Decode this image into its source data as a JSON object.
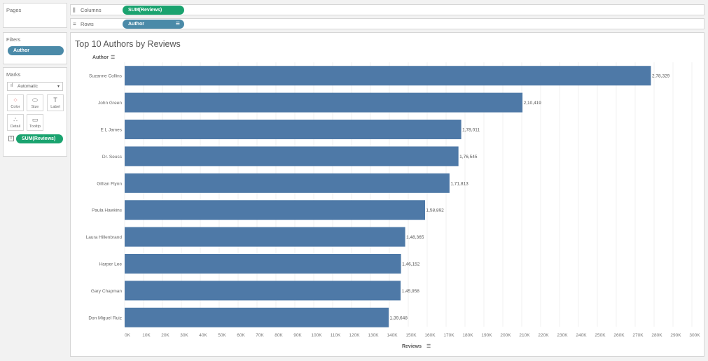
{
  "pages": {
    "title": "Pages"
  },
  "filters": {
    "title": "Filters",
    "pill": "Author"
  },
  "marks": {
    "title": "Marks",
    "dropdown": "Automatic",
    "buttons": [
      {
        "name": "color",
        "label": "Color",
        "glyph": "⁘"
      },
      {
        "name": "size",
        "label": "Size",
        "glyph": "⬭"
      },
      {
        "name": "label",
        "label": "Label",
        "glyph": "T"
      },
      {
        "name": "detail",
        "label": "Detail",
        "glyph": "∴"
      },
      {
        "name": "tooltip",
        "label": "Tooltip",
        "glyph": "▭"
      }
    ],
    "measure_pill": "SUM(Reviews)"
  },
  "shelves": {
    "columns": {
      "label": "Columns",
      "pill": "SUM(Reviews)"
    },
    "rows": {
      "label": "Rows",
      "pill": "Author"
    }
  },
  "colors": {
    "bar": "#4e79a7",
    "green_pill": "#1aa36f",
    "blue_pill": "#4b8aa8"
  },
  "chart_data": {
    "type": "bar",
    "orientation": "horizontal",
    "title": "Top 10 Authors by Reviews",
    "xlabel": "Reviews",
    "ylabel": "Author",
    "categories": [
      "Suzanne Collins",
      "John Green",
      "E L James",
      "Dr. Seuss",
      "Gillian Flynn",
      "Paula Hawkins",
      "Laura Hillenbrand",
      "Harper Lee",
      "Gary Chapman",
      "Don Miguel Ruiz"
    ],
    "values": [
      278329,
      210419,
      178011,
      176545,
      171813,
      158892,
      148365,
      146152,
      145958,
      139648
    ],
    "value_labels": [
      "2,78,329",
      "2,10,419",
      "1,78,011",
      "1,76,545",
      "1,71,813",
      "1,58,892",
      "1,48,365",
      "1,46,152",
      "1,45,958",
      "1,39,648"
    ],
    "xlim": [
      0,
      300000
    ],
    "xticks": [
      0,
      10000,
      20000,
      30000,
      40000,
      50000,
      60000,
      70000,
      80000,
      90000,
      100000,
      110000,
      120000,
      130000,
      140000,
      150000,
      160000,
      170000,
      180000,
      190000,
      200000,
      210000,
      220000,
      230000,
      240000,
      250000,
      260000,
      270000,
      280000,
      290000,
      300000
    ],
    "xtick_labels": [
      "0K",
      "10K",
      "20K",
      "30K",
      "40K",
      "50K",
      "60K",
      "70K",
      "80K",
      "90K",
      "100K",
      "110K",
      "120K",
      "130K",
      "140K",
      "150K",
      "160K",
      "170K",
      "180K",
      "190K",
      "200K",
      "210K",
      "220K",
      "230K",
      "240K",
      "250K",
      "260K",
      "270K",
      "280K",
      "290K",
      "300K"
    ],
    "grid": true
  }
}
